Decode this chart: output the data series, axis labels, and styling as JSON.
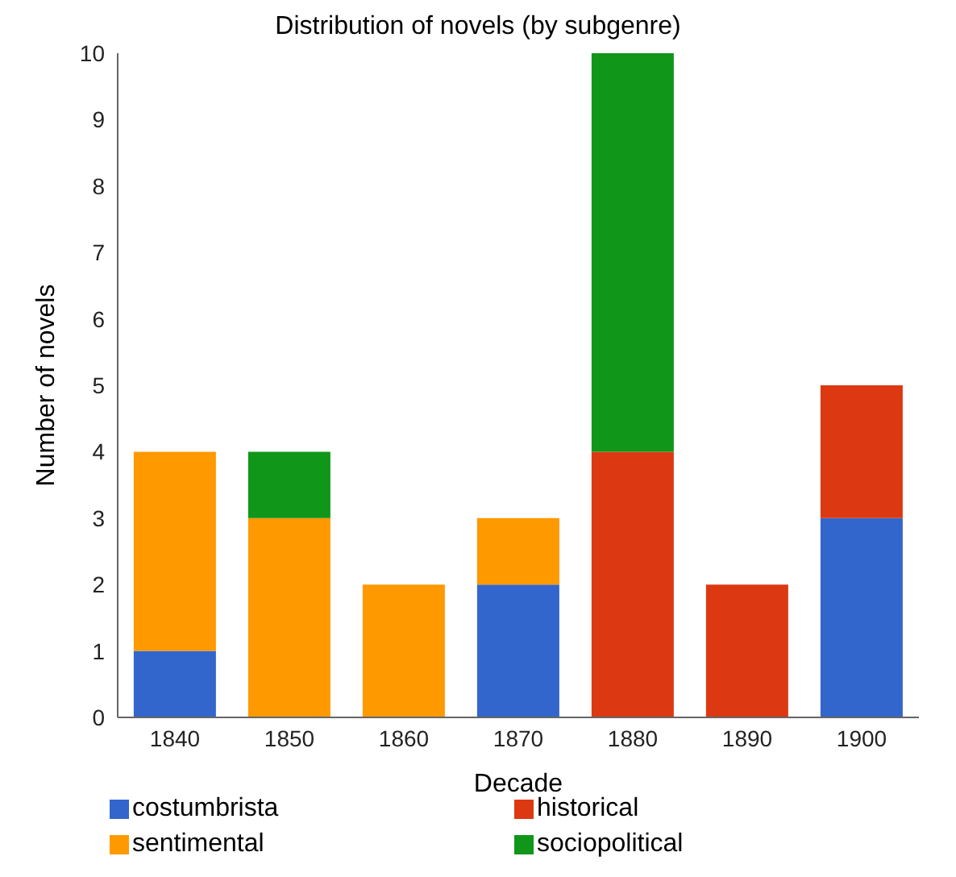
{
  "chart_data": {
    "type": "bar",
    "title": "Distribution of novels (by subgenre)",
    "xlabel": "Decade",
    "ylabel": "Number of novels",
    "categories": [
      "1840",
      "1850",
      "1860",
      "1870",
      "1880",
      "1890",
      "1900"
    ],
    "stacked": true,
    "series": [
      {
        "name": "costumbrista",
        "color": "#3366cc",
        "values": [
          1,
          null,
          null,
          2,
          null,
          null,
          3
        ]
      },
      {
        "name": "historical",
        "color": "#dc3912",
        "values": [
          null,
          null,
          null,
          null,
          4,
          2,
          2
        ]
      },
      {
        "name": "sentimental",
        "color": "#ff9900",
        "values": [
          3,
          3,
          2,
          1,
          null,
          null,
          null
        ]
      },
      {
        "name": "sociopolitical",
        "color": "#109618",
        "values": [
          null,
          1,
          null,
          null,
          6,
          null,
          null
        ]
      }
    ],
    "ylim": [
      0,
      10
    ],
    "yticks": [
      0,
      1,
      2,
      3,
      4,
      5,
      6,
      7,
      8,
      9,
      10
    ],
    "grid": false,
    "legend": "bottom"
  }
}
